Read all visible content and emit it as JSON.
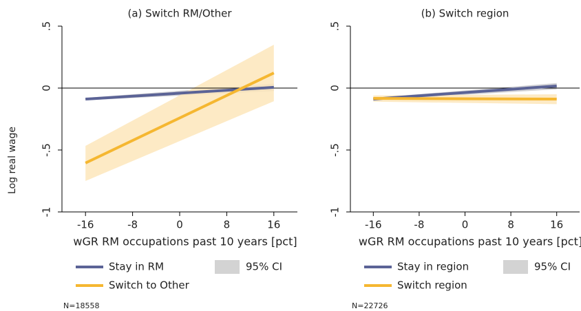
{
  "chart_data": [
    {
      "type": "line",
      "title": "(a) Switch RM/Other",
      "xlabel": "wGR RM occupations past 10 years [pct]",
      "ylabel": "Log real wage",
      "x": [
        -16,
        16
      ],
      "xlim": [
        -20,
        20
      ],
      "xticks": [
        -16,
        -8,
        0,
        8,
        16
      ],
      "ylim": [
        -1,
        0.5
      ],
      "yticks": [
        -1,
        {
          "value": -0.5,
          "label": "-.5"
        },
        0,
        {
          "value": 0.5,
          "label": ".5"
        }
      ],
      "reference_line": 0,
      "series": [
        {
          "name": "Stay in RM",
          "color": "#5b6396",
          "band_color": "#c8c8cc",
          "values": [
            -0.089,
            0.006
          ],
          "lower": [
            -0.099,
            -0.024
          ],
          "upper": [
            -0.079,
            0.036
          ]
        },
        {
          "name": "Switch to Other",
          "color": "#f5b731",
          "band_color": "#fde6bb",
          "values": [
            -0.605,
            0.122
          ],
          "lower": [
            -0.75,
            -0.106
          ],
          "upper": [
            -0.467,
            0.35
          ]
        }
      ],
      "ci_label": "95% CI",
      "ci_color": "#d3d3d3",
      "note": "N=18558"
    },
    {
      "type": "line",
      "title": "(b) Switch region",
      "xlabel": "wGR RM occupations past 10 years [pct]",
      "x": [
        -16,
        16
      ],
      "xlim": [
        -20,
        20
      ],
      "xticks": [
        -16,
        -8,
        0,
        8,
        16
      ],
      "ylim": [
        -1,
        0.5
      ],
      "yticks": [
        -1,
        {
          "value": -0.5,
          "label": "-.5"
        },
        0,
        {
          "value": 0.5,
          "label": ".5"
        }
      ],
      "reference_line": 0,
      "series": [
        {
          "name": "Stay in region",
          "color": "#5b6396",
          "band_color": "#c8c8cc",
          "values": [
            -0.089,
            0.017
          ],
          "lower": [
            -0.099,
            -0.01
          ],
          "upper": [
            -0.079,
            0.04
          ]
        },
        {
          "name": "Switch region",
          "color": "#f5b731",
          "band_color": "#fde6bb",
          "values": [
            -0.083,
            -0.089
          ],
          "lower": [
            -0.11,
            -0.13
          ],
          "upper": [
            -0.06,
            -0.05
          ]
        }
      ],
      "ci_label": "95% CI",
      "ci_color": "#d3d3d3",
      "note": "N=22726"
    }
  ]
}
